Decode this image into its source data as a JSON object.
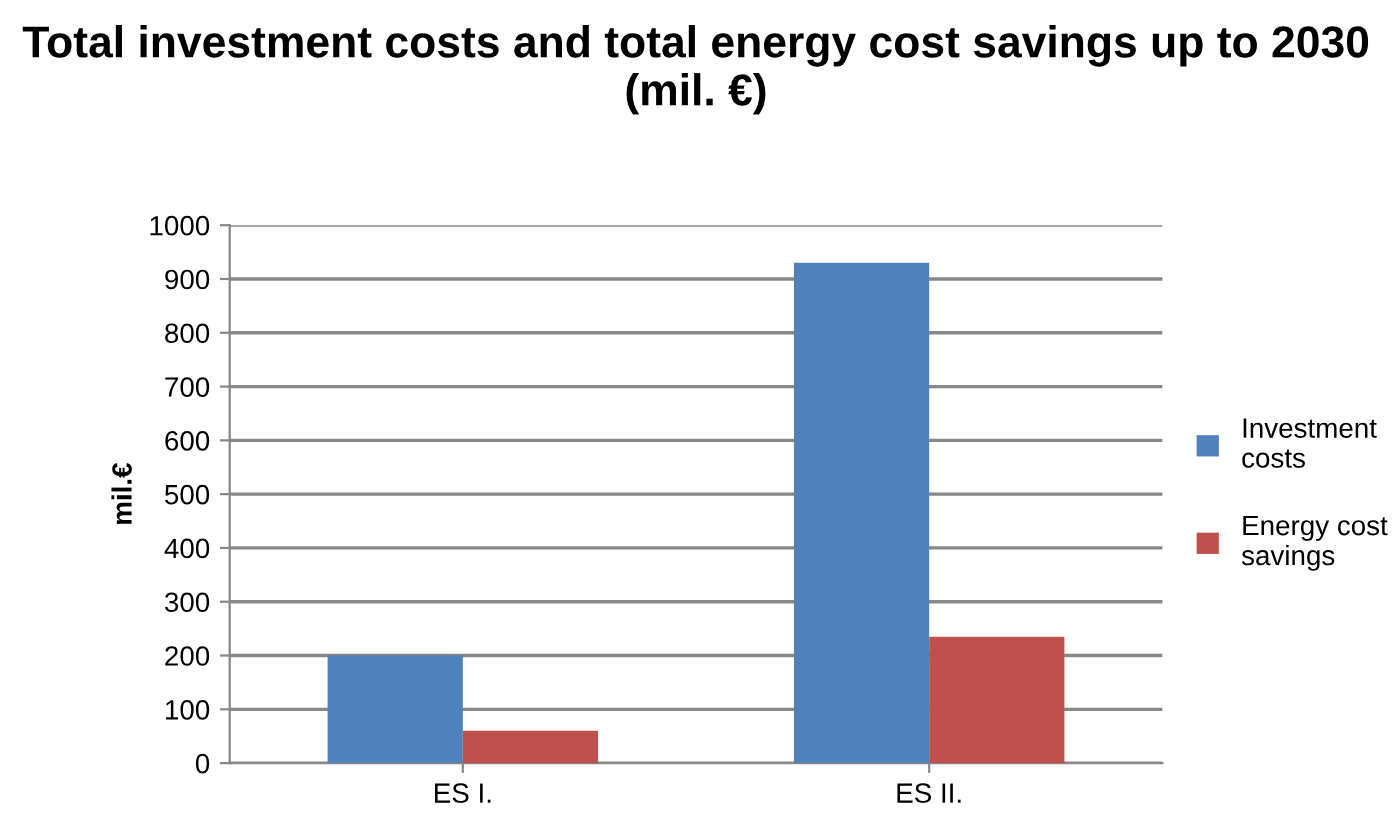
{
  "chart_data": {
    "type": "bar",
    "title": "Total investment costs and total energy cost savings up to 2030 (mil. €)",
    "ylabel": "mil.€",
    "categories": [
      "ES I.",
      "ES II."
    ],
    "series": [
      {
        "name": "Investment costs",
        "color": "#4f81bd",
        "values": [
          200,
          930
        ]
      },
      {
        "name": "Energy cost savings",
        "color": "#c0504d",
        "values": [
          60,
          235
        ]
      }
    ],
    "ylim": [
      0,
      1000
    ],
    "yticks": [
      0,
      100,
      200,
      300,
      400,
      500,
      600,
      700,
      800,
      900,
      1000
    ],
    "grid": "y",
    "legend": "right"
  }
}
